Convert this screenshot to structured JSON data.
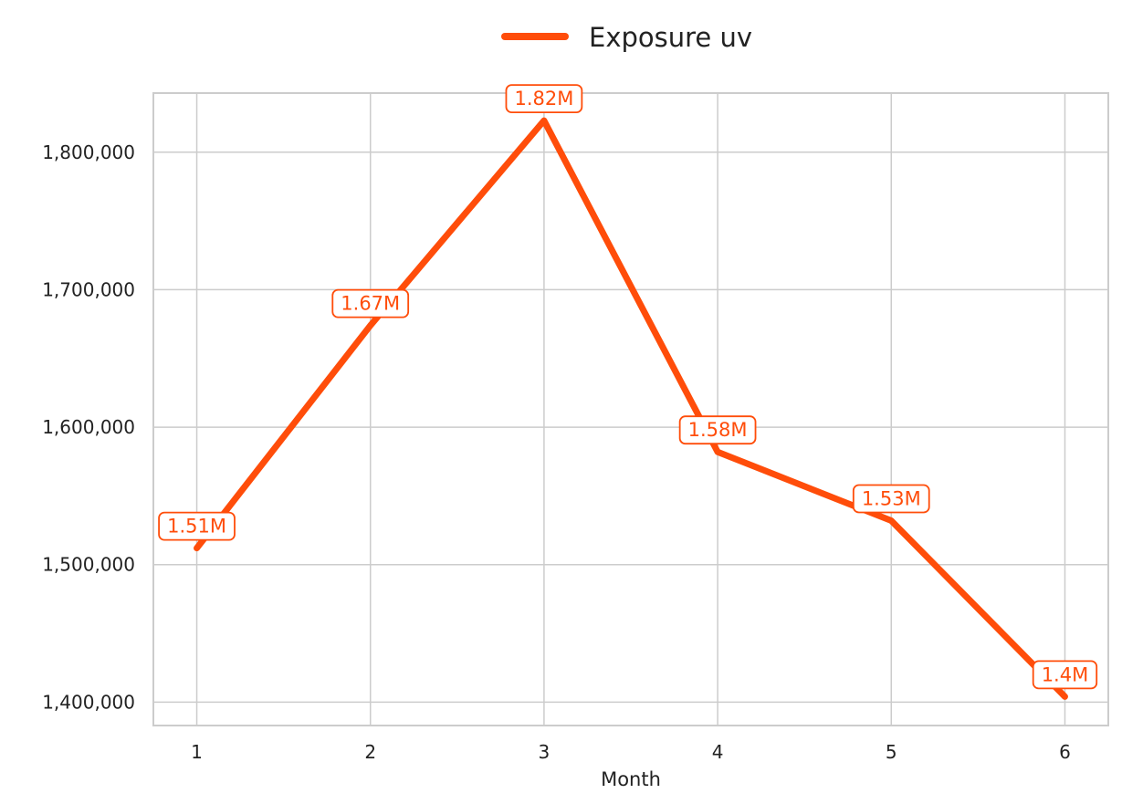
{
  "chart_data": {
    "type": "line",
    "x": [
      1,
      2,
      3,
      4,
      5,
      6
    ],
    "series": [
      {
        "name": "Exposure uv",
        "values": [
          1512000,
          1674000,
          1823000,
          1582000,
          1532000,
          1404000
        ],
        "labels": [
          "1.51M",
          "1.67M",
          "1.82M",
          "1.58M",
          "1.53M",
          "1.4M"
        ],
        "color": "#FF4D0A"
      }
    ],
    "xlabel": "Month",
    "ylabel": "",
    "xticks": [
      "1",
      "2",
      "3",
      "4",
      "5",
      "6"
    ],
    "yticks": [
      1400000,
      1500000,
      1600000,
      1700000,
      1800000
    ],
    "ytick_labels": [
      "1,400,000",
      "1,500,000",
      "1,600,000",
      "1,700,000",
      "1,800,000"
    ],
    "xlim": [
      0.75,
      6.25
    ],
    "ylim": [
      1383000,
      1843000
    ],
    "grid": true,
    "legend_position": "top-center"
  },
  "colors": {
    "grid": "#cccccc",
    "frame": "#cccccc",
    "label_box_fill": "#ffffff"
  }
}
